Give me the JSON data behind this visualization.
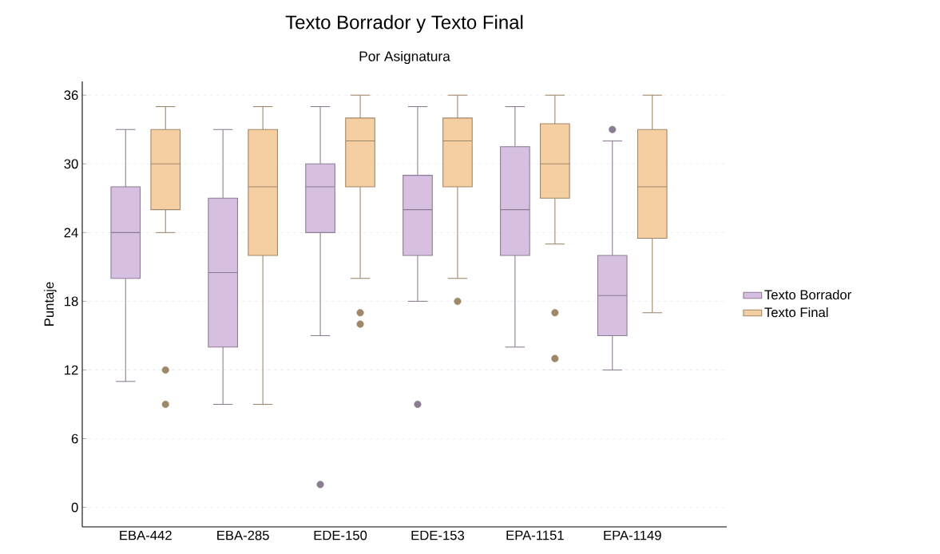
{
  "chart_data": {
    "type": "box",
    "title": "Texto Borrador y Texto Final",
    "subtitle": "Por Asignatura",
    "ylabel": "Puntaje",
    "categories": [
      "EBA-442",
      "EBA-285",
      "EDE-150",
      "EDE-153",
      "EPA-1151",
      "EPA-1149"
    ],
    "ylim": [
      -1.7,
      37.2
    ],
    "yticks": [
      0,
      6,
      12,
      18,
      24,
      30,
      36
    ],
    "grid": "y",
    "legend": "right",
    "series": [
      {
        "name": "Texto Borrador",
        "color": "#d7bfe1",
        "boxes": [
          {
            "low": 11,
            "q1": 20,
            "median": 24,
            "q3": 28,
            "high": 33
          },
          {
            "low": 9,
            "q1": 14,
            "median": 20.5,
            "q3": 27,
            "high": 33
          },
          {
            "low": 15,
            "q1": 24,
            "median": 28,
            "q3": 30,
            "high": 35,
            "outliers": [
              2
            ]
          },
          {
            "low": 18,
            "q1": 22,
            "median": 26,
            "q3": 29,
            "high": 35,
            "outliers": [
              9
            ]
          },
          {
            "low": 14,
            "q1": 22,
            "median": 26,
            "q3": 31.5,
            "high": 35
          },
          {
            "low": 12,
            "q1": 15,
            "median": 18.5,
            "q3": 22,
            "high": 32,
            "outliers": [
              33
            ]
          }
        ]
      },
      {
        "name": "Texto Final",
        "color": "#f5cfa1",
        "boxes": [
          {
            "low": 24,
            "q1": 26,
            "median": 30,
            "q3": 33,
            "high": 35,
            "outliers": [
              12,
              9
            ]
          },
          {
            "low": 9,
            "q1": 22,
            "median": 28,
            "q3": 33,
            "high": 35
          },
          {
            "low": 20,
            "q1": 28,
            "median": 32,
            "q3": 34,
            "high": 36,
            "outliers": [
              17,
              16
            ]
          },
          {
            "low": 20,
            "q1": 28,
            "median": 32,
            "q3": 34,
            "high": 36,
            "outliers": [
              18
            ]
          },
          {
            "low": 23,
            "q1": 27,
            "median": 30,
            "q3": 33.5,
            "high": 36,
            "outliers": [
              17,
              13
            ]
          },
          {
            "low": 17,
            "q1": 23.5,
            "median": 28,
            "q3": 33,
            "high": 36
          }
        ]
      }
    ]
  }
}
